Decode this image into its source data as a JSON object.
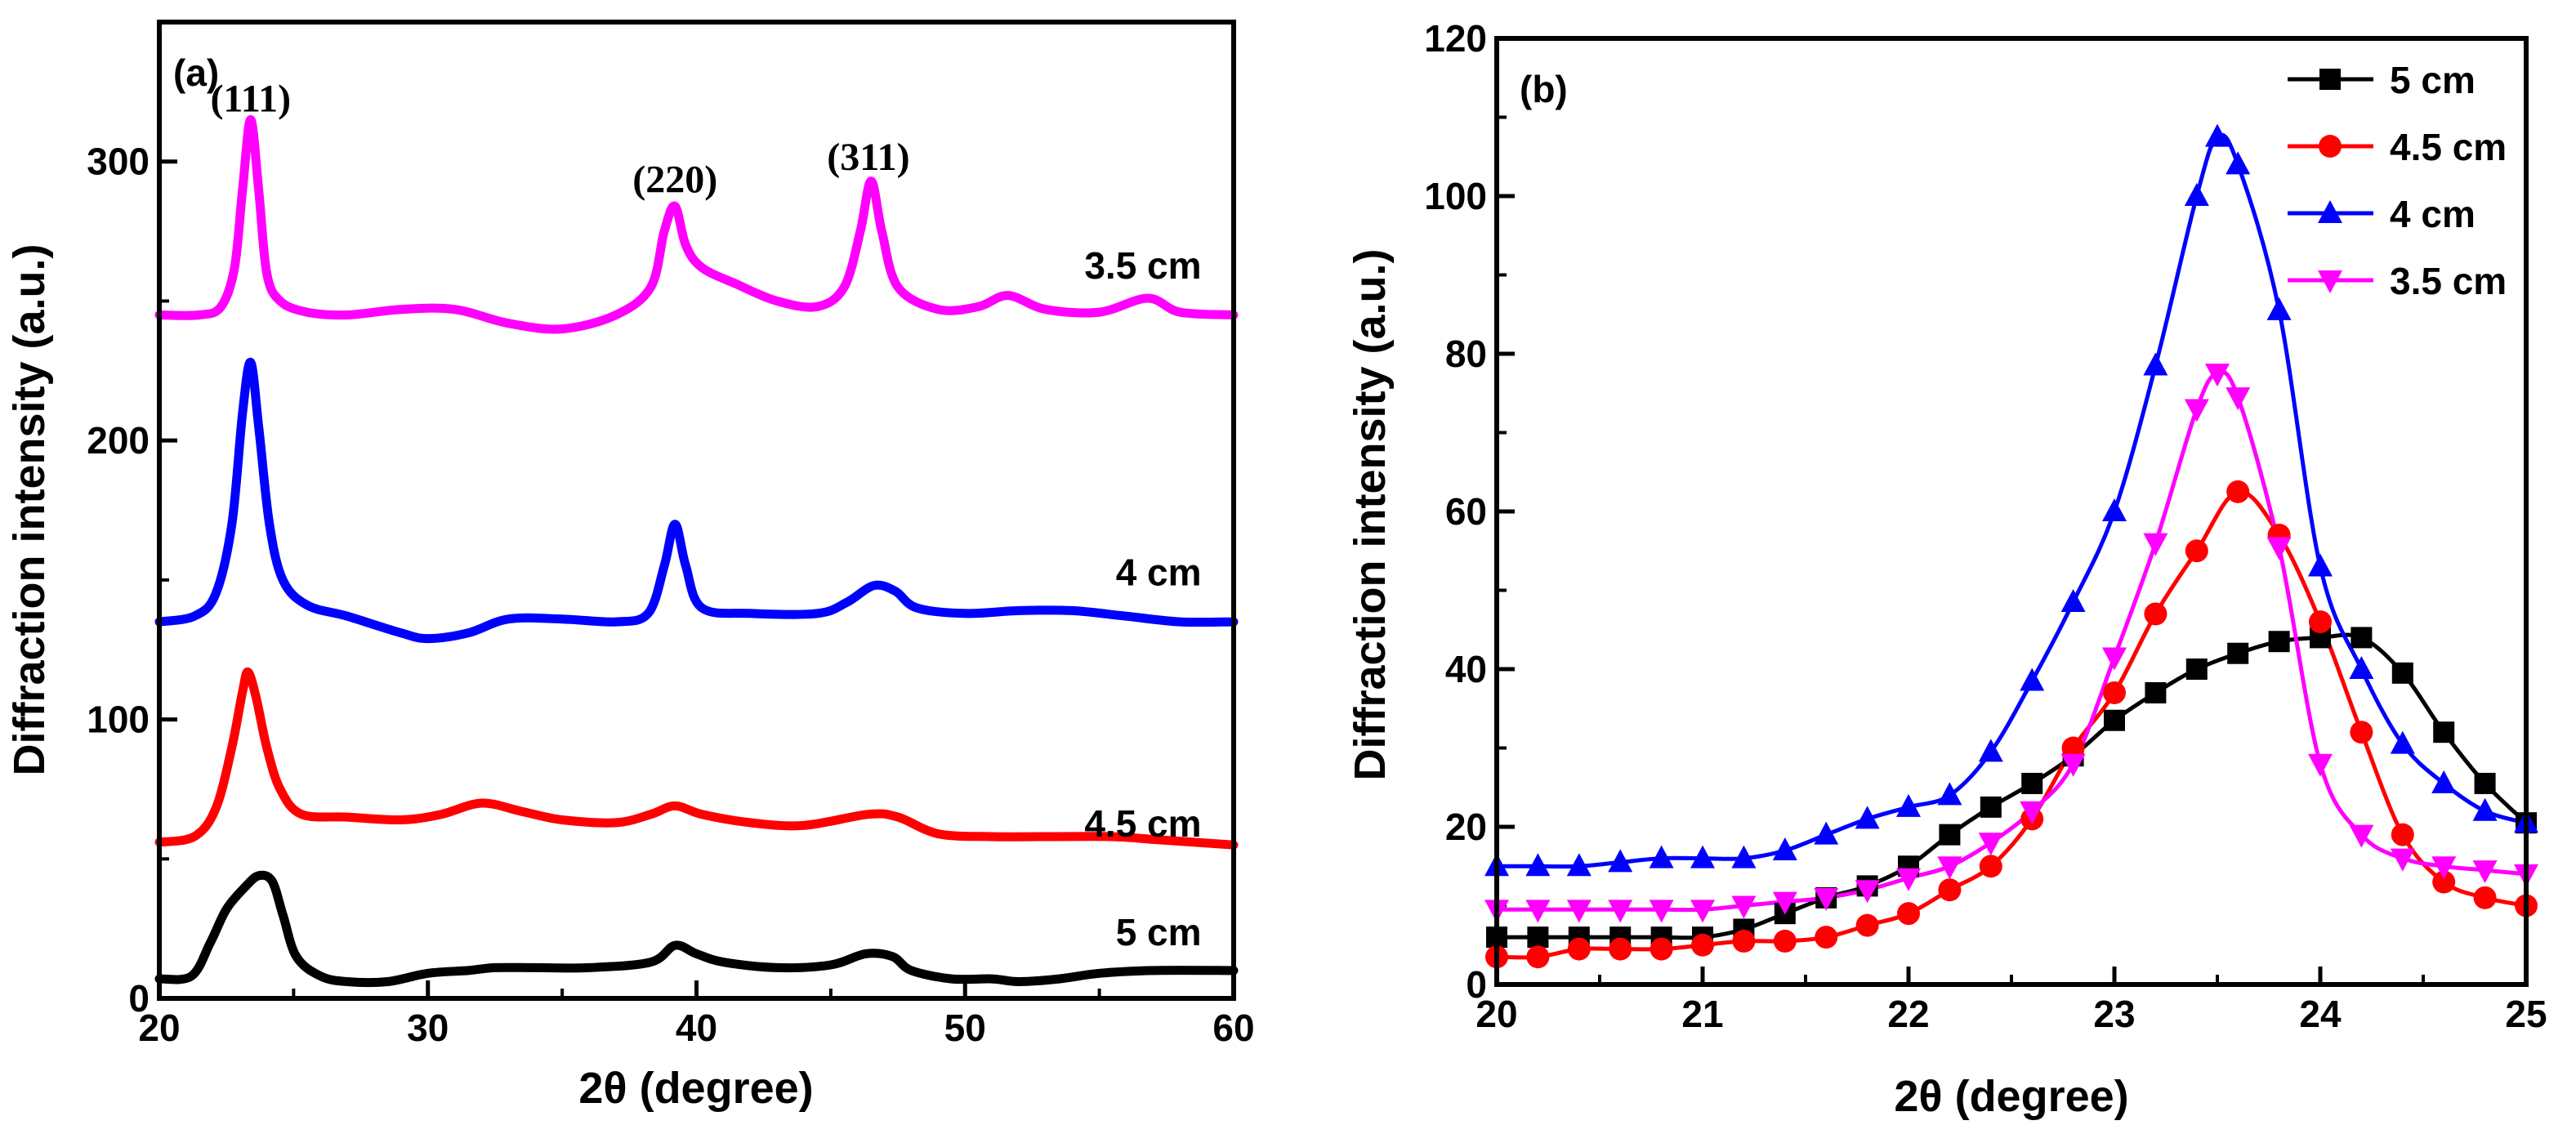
{
  "chart_data": [
    {
      "type": "line",
      "panel": "(a)",
      "xlabel": "2θ (degree)",
      "ylabel": "Diffraction intensity (a.u.)",
      "xlim": [
        20,
        60
      ],
      "ylim": [
        0,
        350
      ],
      "xticks": [
        20,
        30,
        40,
        50,
        60
      ],
      "yticks": [
        0,
        100,
        200,
        300
      ],
      "annotations": [
        {
          "text": "(111)",
          "x": 23.4,
          "y": 318
        },
        {
          "text": "(220)",
          "x": 39.2,
          "y": 289
        },
        {
          "text": "(311)",
          "x": 46.4,
          "y": 297
        }
      ],
      "series": [
        {
          "name": "3.5 cm",
          "color": "#ff00ff",
          "label_at": [
            58.8,
            258
          ],
          "points": [
            [
              20,
              245
            ],
            [
              21.5,
              245
            ],
            [
              22.3,
              248
            ],
            [
              22.8,
              262
            ],
            [
              23.1,
              290
            ],
            [
              23.4,
              315
            ],
            [
              23.7,
              290
            ],
            [
              24.0,
              260
            ],
            [
              24.5,
              250
            ],
            [
              25.5,
              246
            ],
            [
              27,
              245
            ],
            [
              29,
              247
            ],
            [
              31,
              247
            ],
            [
              33,
              242
            ],
            [
              35,
              240
            ],
            [
              37,
              245
            ],
            [
              38.3,
              255
            ],
            [
              38.8,
              275
            ],
            [
              39.2,
              284
            ],
            [
              39.6,
              270
            ],
            [
              40.2,
              262
            ],
            [
              41.5,
              256
            ],
            [
              43,
              250
            ],
            [
              44.5,
              248
            ],
            [
              45.5,
              255
            ],
            [
              46.1,
              275
            ],
            [
              46.5,
              293
            ],
            [
              46.9,
              275
            ],
            [
              47.5,
              255
            ],
            [
              49,
              247
            ],
            [
              50.5,
              248
            ],
            [
              51.6,
              252
            ],
            [
              53,
              247
            ],
            [
              55,
              246
            ],
            [
              56.8,
              251
            ],
            [
              58,
              246
            ],
            [
              60,
              245
            ]
          ]
        },
        {
          "name": "4 cm",
          "color": "#0000ff",
          "label_at": [
            58.8,
            148
          ],
          "points": [
            [
              20,
              135
            ],
            [
              21.3,
              137
            ],
            [
              22.1,
              145
            ],
            [
              22.7,
              170
            ],
            [
              23.1,
              210
            ],
            [
              23.4,
              228
            ],
            [
              23.7,
              205
            ],
            [
              24.1,
              170
            ],
            [
              24.6,
              150
            ],
            [
              25.5,
              141
            ],
            [
              27,
              137
            ],
            [
              29,
              131
            ],
            [
              30,
              129
            ],
            [
              31.5,
              131
            ],
            [
              33,
              136
            ],
            [
              35,
              136
            ],
            [
              37,
              135
            ],
            [
              38.2,
              138
            ],
            [
              38.8,
              155
            ],
            [
              39.2,
              170
            ],
            [
              39.6,
              155
            ],
            [
              40.2,
              140
            ],
            [
              42,
              138
            ],
            [
              44.5,
              138
            ],
            [
              45.6,
              142
            ],
            [
              46.6,
              148
            ],
            [
              47.4,
              146
            ],
            [
              48.2,
              140
            ],
            [
              50,
              138
            ],
            [
              52,
              139
            ],
            [
              54,
              139
            ],
            [
              56,
              137
            ],
            [
              58,
              135
            ],
            [
              60,
              135
            ]
          ]
        },
        {
          "name": "4.5 cm",
          "color": "#ff0000",
          "label_at": [
            58.8,
            58
          ],
          "points": [
            [
              20,
              56
            ],
            [
              21.3,
              58
            ],
            [
              22.1,
              68
            ],
            [
              22.7,
              90
            ],
            [
              23.1,
              110
            ],
            [
              23.3,
              117
            ],
            [
              23.6,
              108
            ],
            [
              24.0,
              90
            ],
            [
              24.5,
              75
            ],
            [
              25.3,
              66
            ],
            [
              27,
              65
            ],
            [
              29,
              64
            ],
            [
              30.5,
              66
            ],
            [
              32,
              70
            ],
            [
              33.5,
              67
            ],
            [
              35,
              64
            ],
            [
              37,
              63
            ],
            [
              38.3,
              66
            ],
            [
              39.2,
              69
            ],
            [
              40.2,
              66
            ],
            [
              42,
              63
            ],
            [
              44,
              62
            ],
            [
              46.4,
              66
            ],
            [
              47.5,
              65
            ],
            [
              49,
              59
            ],
            [
              51,
              58
            ],
            [
              53,
              58
            ],
            [
              55.5,
              58
            ],
            [
              57,
              57
            ],
            [
              60,
              55
            ]
          ]
        },
        {
          "name": "5 cm",
          "color": "#000000",
          "label_at": [
            58.8,
            19
          ],
          "points": [
            [
              20,
              7
            ],
            [
              21.2,
              8
            ],
            [
              21.9,
              20
            ],
            [
              22.5,
              32
            ],
            [
              23.2,
              40
            ],
            [
              23.7,
              44
            ],
            [
              24.2,
              42
            ],
            [
              24.6,
              30
            ],
            [
              25.1,
              15
            ],
            [
              26,
              8
            ],
            [
              27,
              6
            ],
            [
              28.5,
              6
            ],
            [
              30,
              9
            ],
            [
              31.5,
              10
            ],
            [
              32.5,
              11
            ],
            [
              34,
              11
            ],
            [
              36,
              11
            ],
            [
              38.3,
              13
            ],
            [
              39.2,
              19
            ],
            [
              40,
              16
            ],
            [
              41,
              13
            ],
            [
              43,
              11
            ],
            [
              45,
              12
            ],
            [
              46.3,
              16
            ],
            [
              47.3,
              15
            ],
            [
              48,
              10
            ],
            [
              49.5,
              7
            ],
            [
              51,
              7
            ],
            [
              52,
              6
            ],
            [
              53.5,
              7
            ],
            [
              55,
              9
            ],
            [
              57,
              10
            ],
            [
              60,
              10
            ]
          ]
        }
      ]
    },
    {
      "type": "line",
      "panel": "(b)",
      "xlabel": "2θ (degree)",
      "ylabel": "Diffraction intensity (a.u.)",
      "xlim": [
        20,
        25
      ],
      "ylim": [
        0,
        120
      ],
      "xticks": [
        20,
        21,
        22,
        23,
        24,
        25
      ],
      "yticks": [
        0,
        20,
        40,
        60,
        80,
        100,
        120
      ],
      "legend_position": "top-right",
      "series": [
        {
          "name": "5 cm",
          "color": "#000000",
          "marker": "square",
          "points": [
            [
              20,
              6
            ],
            [
              20.2,
              6
            ],
            [
              20.4,
              6
            ],
            [
              20.6,
              6
            ],
            [
              20.8,
              6
            ],
            [
              21,
              6
            ],
            [
              21.2,
              7
            ],
            [
              21.4,
              9
            ],
            [
              21.6,
              11
            ],
            [
              21.8,
              12.5
            ],
            [
              22,
              15
            ],
            [
              22.2,
              19
            ],
            [
              22.4,
              22.5
            ],
            [
              22.6,
              25.5
            ],
            [
              22.8,
              29
            ],
            [
              23,
              33.5
            ],
            [
              23.2,
              37
            ],
            [
              23.4,
              40
            ],
            [
              23.6,
              42
            ],
            [
              23.8,
              43.5
            ],
            [
              24,
              44
            ],
            [
              24.2,
              44
            ],
            [
              24.4,
              39.5
            ],
            [
              24.6,
              32
            ],
            [
              24.8,
              25.5
            ],
            [
              25,
              20.5
            ]
          ]
        },
        {
          "name": "4.5 cm",
          "color": "#ff0000",
          "marker": "circle",
          "points": [
            [
              20,
              3.5
            ],
            [
              20.2,
              3.5
            ],
            [
              20.4,
              4.5
            ],
            [
              20.6,
              4.5
            ],
            [
              20.8,
              4.5
            ],
            [
              21,
              5
            ],
            [
              21.2,
              5.5
            ],
            [
              21.4,
              5.5
            ],
            [
              21.6,
              6
            ],
            [
              21.8,
              7.5
            ],
            [
              22,
              9
            ],
            [
              22.2,
              12
            ],
            [
              22.4,
              15
            ],
            [
              22.6,
              21
            ],
            [
              22.8,
              30
            ],
            [
              23,
              37
            ],
            [
              23.2,
              47
            ],
            [
              23.4,
              55
            ],
            [
              23.6,
              62.5
            ],
            [
              23.8,
              57
            ],
            [
              24,
              46
            ],
            [
              24.2,
              32
            ],
            [
              24.4,
              19
            ],
            [
              24.6,
              13
            ],
            [
              24.8,
              11
            ],
            [
              25,
              10
            ]
          ]
        },
        {
          "name": "4 cm",
          "color": "#0000ff",
          "marker": "triangle-up",
          "points": [
            [
              20,
              15
            ],
            [
              20.2,
              15
            ],
            [
              20.4,
              15
            ],
            [
              20.6,
              15.5
            ],
            [
              20.8,
              16
            ],
            [
              21,
              16
            ],
            [
              21.2,
              16
            ],
            [
              21.4,
              17
            ],
            [
              21.6,
              19
            ],
            [
              21.8,
              21
            ],
            [
              22,
              22.5
            ],
            [
              22.2,
              24
            ],
            [
              22.4,
              29.5
            ],
            [
              22.6,
              38.5
            ],
            [
              22.8,
              48.5
            ],
            [
              23,
              60
            ],
            [
              23.2,
              78.5
            ],
            [
              23.4,
              100
            ],
            [
              23.5,
              107.5
            ],
            [
              23.6,
              104
            ],
            [
              23.8,
              85.5
            ],
            [
              24,
              53
            ],
            [
              24.2,
              40
            ],
            [
              24.4,
              30.5
            ],
            [
              24.6,
              25.5
            ],
            [
              24.8,
              22
            ],
            [
              25,
              20.5
            ]
          ]
        },
        {
          "name": "3.5 cm",
          "color": "#ff00ff",
          "marker": "triangle-down",
          "points": [
            [
              20,
              9.5
            ],
            [
              20.2,
              9.5
            ],
            [
              20.4,
              9.5
            ],
            [
              20.6,
              9.5
            ],
            [
              20.8,
              9.5
            ],
            [
              21,
              9.5
            ],
            [
              21.2,
              10
            ],
            [
              21.4,
              10.5
            ],
            [
              21.6,
              11
            ],
            [
              21.8,
              12
            ],
            [
              22,
              13.5
            ],
            [
              22.2,
              15
            ],
            [
              22.4,
              18
            ],
            [
              22.6,
              22
            ],
            [
              22.8,
              28
            ],
            [
              23,
              41.5
            ],
            [
              23.2,
              56
            ],
            [
              23.4,
              73
            ],
            [
              23.5,
              77.5
            ],
            [
              23.6,
              74.5
            ],
            [
              23.8,
              55.5
            ],
            [
              24,
              28
            ],
            [
              24.2,
              19
            ],
            [
              24.4,
              16
            ],
            [
              24.6,
              15
            ],
            [
              24.8,
              14.5
            ],
            [
              25,
              14
            ]
          ]
        }
      ]
    }
  ]
}
